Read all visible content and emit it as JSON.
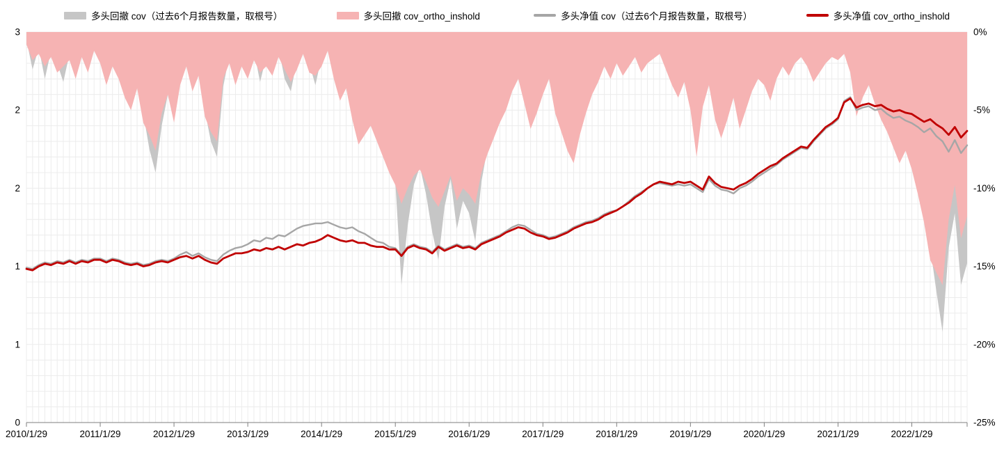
{
  "legend": [
    {
      "label": "多头回撤 cov（过去6个月报告数量，取根号）",
      "color": "#c6c6c6",
      "swatch": "area"
    },
    {
      "label": "多头回撤 cov_ortho_inshold",
      "color": "#f6b3b3",
      "swatch": "area"
    },
    {
      "label": "多头净值 cov（过去6个月报告数量，取根号）",
      "color": "#a6a6a6",
      "swatch": "line"
    },
    {
      "label": "多头净值 cov_ortho_inshold",
      "color": "#c00000",
      "swatch": "line"
    }
  ],
  "chart_data": {
    "type": "line",
    "title": "",
    "x_tick_labels": [
      "2010/1/29",
      "2011/1/29",
      "2012/1/29",
      "2013/1/29",
      "2014/1/29",
      "2015/1/29",
      "2016/1/29",
      "2017/1/29",
      "2018/1/29",
      "2019/1/29",
      "2020/1/29",
      "2021/1/29",
      "2022/1/29"
    ],
    "points_per_year": 12,
    "left_axis": {
      "range": [
        0,
        3
      ],
      "tick_values": [
        0,
        0.6,
        1.2,
        1.8,
        2.4,
        3
      ],
      "tick_labels": [
        "0",
        "1",
        "1",
        "2",
        "2",
        "3"
      ],
      "applies_to": "net-value lines"
    },
    "right_axis": {
      "range": [
        -25,
        0
      ],
      "tick_values": [
        0,
        -5,
        -10,
        -15,
        -20,
        -25
      ],
      "tick_labels": [
        "0%",
        "-5%",
        "-10%",
        "-15%",
        "-20%",
        "-25%"
      ],
      "applies_to": "drawdown areas"
    },
    "grid": {
      "show": true,
      "color": "#ececec"
    },
    "axis_color": "#7f7f7f",
    "series": [
      {
        "name": "多头回撤 cov（过去6个月报告数量，取根号）",
        "type": "area",
        "axis": "right",
        "color": "#c6c6c6",
        "values": [
          -0.5,
          -2.4,
          -1.0,
          -3.0,
          -1.2,
          -2.0,
          -3.2,
          -1.4,
          -2.2,
          -1.2,
          -2.0,
          -0.8,
          -1.5,
          -2.8,
          -1.6,
          -2.4,
          -3.6,
          -4.4,
          -3.0,
          -5.2,
          -7.5,
          -9.0,
          -6.0,
          -4.0,
          -5.5,
          -3.0,
          -1.8,
          -3.5,
          -2.4,
          -5.0,
          -7.0,
          -8.0,
          -3.5,
          -1.5,
          -3.0,
          -1.6,
          -2.4,
          -1.2,
          -3.2,
          -1.6,
          -2.2,
          -1.0,
          -3.0,
          -3.8,
          -1.8,
          -0.8,
          -2.0,
          -3.4,
          -1.6,
          -0.6,
          -2.4,
          -3.6,
          -2.8,
          -4.8,
          -6.4,
          -5.4,
          -4.6,
          -5.8,
          -7.2,
          -8.4,
          -9.6,
          -16.2,
          -12.4,
          -9.8,
          -8.6,
          -10.4,
          -12.8,
          -14.6,
          -11.2,
          -9.4,
          -12.6,
          -10.8,
          -11.6,
          -13.4,
          -9.6,
          -7.4,
          -6.2,
          -5.0,
          -4.2,
          -3.0,
          -2.2,
          -3.8,
          -5.4,
          -4.4,
          -3.2,
          -2.2,
          -4.4,
          -5.6,
          -6.8,
          -7.6,
          -5.8,
          -4.4,
          -3.2,
          -2.4,
          -1.4,
          -2.2,
          -1.2,
          -2.0,
          -1.4,
          -0.8,
          -1.8,
          -1.2,
          -0.9,
          -0.6,
          -1.6,
          -2.6,
          -3.4,
          -2.4,
          -4.2,
          -7.0,
          -4.0,
          -2.6,
          -4.8,
          -6.0,
          -4.8,
          -3.4,
          -5.4,
          -4.2,
          -3.0,
          -2.2,
          -2.6,
          -3.6,
          -2.2,
          -1.4,
          -2.0,
          -1.2,
          -0.8,
          -1.4,
          -2.4,
          -1.8,
          -1.2,
          -0.8,
          -1.0,
          -0.6,
          -1.8,
          -4.6,
          -3.4,
          -2.6,
          -3.8,
          -4.8,
          -5.6,
          -6.6,
          -7.6,
          -6.8,
          -8.0,
          -9.6,
          -11.4,
          -13.8,
          -16.6,
          -19.2,
          -13.8,
          -11.6,
          -16.2,
          -14.8
        ]
      },
      {
        "name": "多头回撤 cov_ortho_inshold",
        "type": "area",
        "axis": "right",
        "color": "#f6b3b3",
        "values": [
          -0.8,
          -1.8,
          -1.4,
          -2.2,
          -1.6,
          -2.6,
          -2.2,
          -1.8,
          -3.0,
          -1.6,
          -2.6,
          -1.2,
          -2.0,
          -3.4,
          -2.2,
          -3.0,
          -4.2,
          -5.0,
          -3.6,
          -5.8,
          -6.6,
          -7.6,
          -5.2,
          -4.0,
          -5.8,
          -3.4,
          -2.2,
          -3.8,
          -2.8,
          -5.4,
          -6.4,
          -7.0,
          -3.0,
          -2.0,
          -3.4,
          -2.2,
          -3.0,
          -1.8,
          -2.6,
          -2.2,
          -2.8,
          -1.6,
          -2.4,
          -3.2,
          -2.4,
          -1.4,
          -2.6,
          -2.8,
          -2.2,
          -1.2,
          -3.0,
          -4.4,
          -3.6,
          -5.6,
          -7.2,
          -6.6,
          -6.0,
          -7.0,
          -8.0,
          -9.0,
          -9.8,
          -11.0,
          -10.0,
          -9.2,
          -8.8,
          -9.6,
          -10.6,
          -11.2,
          -10.2,
          -9.2,
          -10.8,
          -10.0,
          -10.4,
          -11.0,
          -9.0,
          -7.8,
          -6.8,
          -5.8,
          -5.0,
          -3.8,
          -3.0,
          -4.6,
          -6.2,
          -5.2,
          -4.0,
          -3.0,
          -5.2,
          -6.4,
          -7.6,
          -8.4,
          -6.6,
          -5.2,
          -4.0,
          -3.2,
          -2.2,
          -3.0,
          -2.0,
          -2.8,
          -2.2,
          -1.6,
          -2.6,
          -2.0,
          -1.7,
          -1.4,
          -2.4,
          -3.4,
          -4.2,
          -3.2,
          -5.0,
          -8.0,
          -4.8,
          -3.4,
          -5.6,
          -6.8,
          -5.6,
          -4.2,
          -6.2,
          -5.0,
          -3.8,
          -3.0,
          -3.4,
          -4.4,
          -3.0,
          -2.2,
          -2.8,
          -2.0,
          -1.6,
          -2.2,
          -3.2,
          -2.6,
          -2.0,
          -1.6,
          -1.8,
          -1.4,
          -2.6,
          -5.4,
          -4.2,
          -3.4,
          -4.6,
          -5.6,
          -6.4,
          -7.4,
          -8.4,
          -7.6,
          -8.8,
          -10.4,
          -12.2,
          -14.6,
          -15.4,
          -16.2,
          -12.0,
          -9.8,
          -13.2,
          -11.8
        ]
      },
      {
        "name": "多头净值 cov（过去6个月报告数量，取根号）",
        "type": "line",
        "axis": "left",
        "color": "#a6a6a6",
        "values": [
          1.19,
          1.18,
          1.21,
          1.23,
          1.22,
          1.24,
          1.23,
          1.25,
          1.23,
          1.25,
          1.24,
          1.26,
          1.26,
          1.24,
          1.26,
          1.25,
          1.23,
          1.22,
          1.23,
          1.21,
          1.22,
          1.24,
          1.25,
          1.24,
          1.26,
          1.29,
          1.31,
          1.28,
          1.3,
          1.27,
          1.25,
          1.24,
          1.29,
          1.32,
          1.34,
          1.35,
          1.37,
          1.4,
          1.39,
          1.42,
          1.41,
          1.44,
          1.43,
          1.46,
          1.49,
          1.51,
          1.52,
          1.53,
          1.53,
          1.54,
          1.52,
          1.5,
          1.49,
          1.5,
          1.47,
          1.45,
          1.42,
          1.39,
          1.38,
          1.35,
          1.34,
          1.29,
          1.35,
          1.37,
          1.35,
          1.34,
          1.31,
          1.36,
          1.33,
          1.35,
          1.37,
          1.35,
          1.36,
          1.34,
          1.38,
          1.4,
          1.42,
          1.44,
          1.47,
          1.5,
          1.52,
          1.51,
          1.48,
          1.45,
          1.44,
          1.42,
          1.43,
          1.45,
          1.47,
          1.5,
          1.52,
          1.54,
          1.55,
          1.57,
          1.6,
          1.62,
          1.63,
          1.66,
          1.7,
          1.74,
          1.77,
          1.8,
          1.83,
          1.84,
          1.83,
          1.82,
          1.83,
          1.82,
          1.83,
          1.8,
          1.77,
          1.87,
          1.82,
          1.79,
          1.78,
          1.76,
          1.8,
          1.82,
          1.85,
          1.89,
          1.92,
          1.95,
          1.98,
          2.02,
          2.05,
          2.08,
          2.11,
          2.1,
          2.16,
          2.21,
          2.26,
          2.29,
          2.33,
          2.47,
          2.5,
          2.4,
          2.42,
          2.43,
          2.4,
          2.41,
          2.37,
          2.34,
          2.35,
          2.32,
          2.3,
          2.27,
          2.23,
          2.26,
          2.2,
          2.16,
          2.08,
          2.17,
          2.07,
          2.13
        ]
      },
      {
        "name": "多头净值 cov_ortho_inshold",
        "type": "line",
        "axis": "left",
        "color": "#c00000",
        "values": [
          1.18,
          1.17,
          1.2,
          1.22,
          1.21,
          1.23,
          1.22,
          1.24,
          1.22,
          1.24,
          1.23,
          1.25,
          1.25,
          1.23,
          1.25,
          1.24,
          1.22,
          1.21,
          1.22,
          1.2,
          1.21,
          1.23,
          1.24,
          1.23,
          1.25,
          1.27,
          1.28,
          1.26,
          1.28,
          1.25,
          1.23,
          1.22,
          1.26,
          1.28,
          1.3,
          1.3,
          1.31,
          1.33,
          1.32,
          1.34,
          1.33,
          1.35,
          1.33,
          1.35,
          1.37,
          1.36,
          1.38,
          1.39,
          1.41,
          1.44,
          1.42,
          1.4,
          1.39,
          1.4,
          1.38,
          1.38,
          1.36,
          1.35,
          1.35,
          1.33,
          1.33,
          1.28,
          1.34,
          1.36,
          1.34,
          1.33,
          1.3,
          1.35,
          1.32,
          1.34,
          1.36,
          1.34,
          1.35,
          1.33,
          1.37,
          1.39,
          1.41,
          1.43,
          1.46,
          1.48,
          1.5,
          1.49,
          1.46,
          1.44,
          1.43,
          1.41,
          1.42,
          1.44,
          1.46,
          1.49,
          1.51,
          1.53,
          1.54,
          1.56,
          1.59,
          1.61,
          1.63,
          1.66,
          1.69,
          1.73,
          1.76,
          1.8,
          1.83,
          1.85,
          1.84,
          1.83,
          1.85,
          1.84,
          1.85,
          1.82,
          1.79,
          1.89,
          1.84,
          1.81,
          1.8,
          1.79,
          1.82,
          1.84,
          1.87,
          1.91,
          1.94,
          1.97,
          1.99,
          2.03,
          2.06,
          2.09,
          2.12,
          2.11,
          2.17,
          2.22,
          2.27,
          2.3,
          2.34,
          2.46,
          2.49,
          2.42,
          2.44,
          2.45,
          2.43,
          2.44,
          2.41,
          2.39,
          2.4,
          2.38,
          2.37,
          2.34,
          2.31,
          2.33,
          2.29,
          2.26,
          2.21,
          2.27,
          2.19,
          2.24
        ]
      }
    ]
  }
}
